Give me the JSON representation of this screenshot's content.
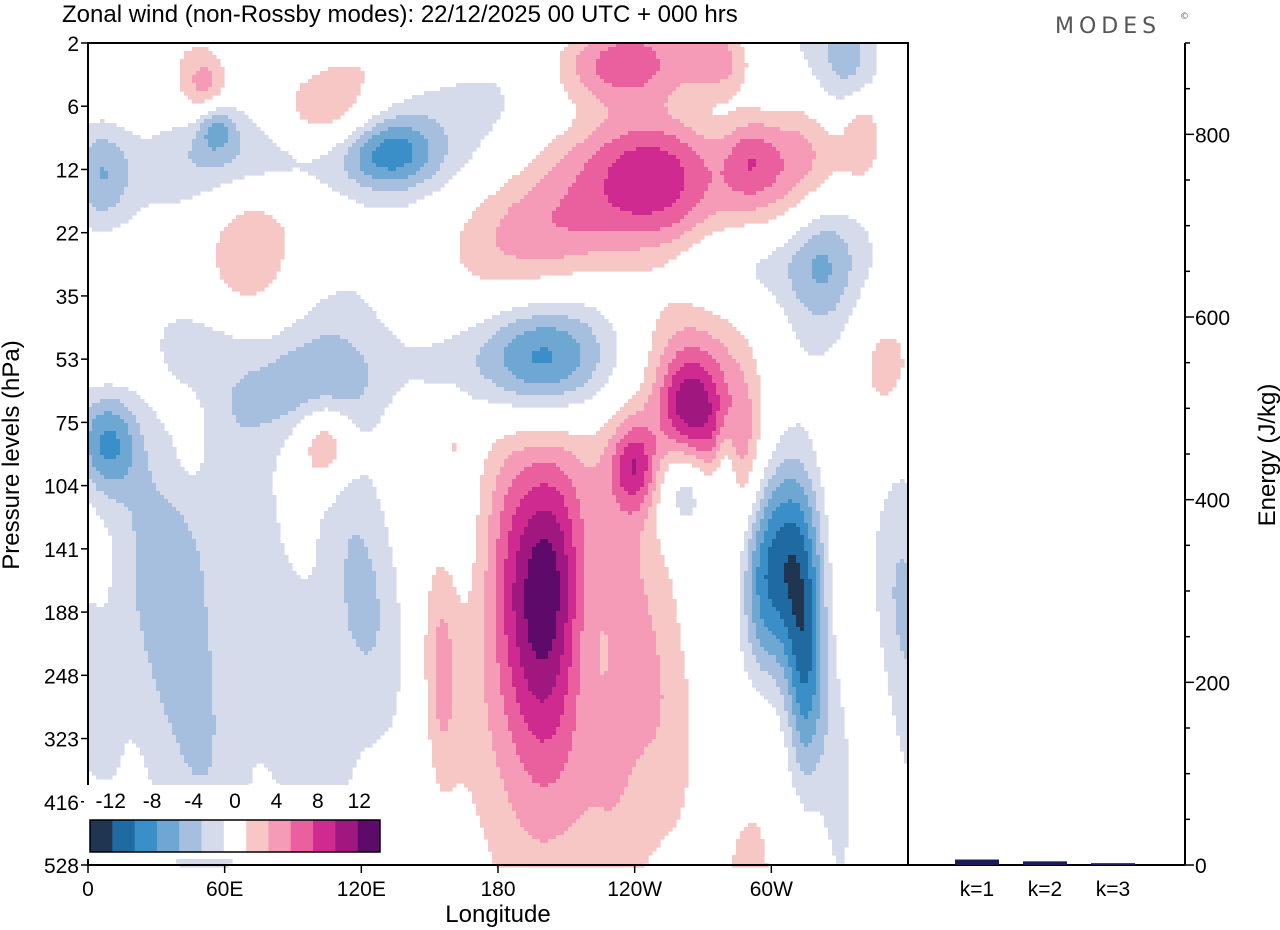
{
  "title": "Zonal wind (non-Rossby modes):  22/12/2025  00 UTC  + 000 hrs",
  "brand": "MODES",
  "brand_mark": "©",
  "colors": {
    "neg": [
      "#1f3550",
      "#1f6aa0",
      "#3a8fc8",
      "#6fa7d3",
      "#a7bfdf",
      "#d6dbec"
    ],
    "zero": "#ffffff",
    "pos": [
      "#f7c7c5",
      "#f59ab7",
      "#ea5f9e",
      "#cf2a8f",
      "#a0187f",
      "#5d0a6a"
    ],
    "axis": "#000000",
    "bar": "#1a1a5e"
  },
  "chart_data": [
    {
      "type": "heatmap",
      "title": "Zonal wind (non-Rossby modes)",
      "xlabel": "Longitude",
      "ylabel": "Pressure levels (hPa)",
      "x_ticks": [
        "0",
        "60E",
        "120E",
        "180",
        "120W",
        "60W"
      ],
      "x_tick_deg": [
        0,
        60,
        120,
        180,
        240,
        300
      ],
      "xlim": [
        0,
        360
      ],
      "y_ticks": [
        "2",
        "6",
        "12",
        "22",
        "35",
        "53",
        "75",
        "104",
        "141",
        "188",
        "248",
        "323",
        "416",
        "528"
      ],
      "colorbar": {
        "labels": [
          "-12",
          "-8",
          "-4",
          "0",
          "4",
          "8",
          "12"
        ],
        "levels": [
          -14,
          -12,
          -10,
          -8,
          -6,
          -4,
          -2,
          2,
          4,
          6,
          8,
          10,
          12,
          14
        ]
      },
      "features": [
        {
          "lon": 196,
          "lev": 9.3,
          "dlon": 18,
          "dlev": 2.5,
          "amp": 10
        },
        {
          "lon": 206,
          "lev": 8.2,
          "dlon": 9,
          "dlev": 1.2,
          "amp": 4
        },
        {
          "lon": 250,
          "lev": 2.0,
          "dlon": 25,
          "dlev": 0.9,
          "amp": 9
        },
        {
          "lon": 278,
          "lev": 6.3,
          "dlon": 15,
          "dlev": 1.0,
          "amp": 10
        },
        {
          "lon": 207,
          "lev": 3.0,
          "dlon": 35,
          "dlev": 0.7,
          "amp": 4
        },
        {
          "lon": 262,
          "lev": 5.7,
          "dlon": 8,
          "dlev": 0.6,
          "amp": 5
        },
        {
          "lon": 312,
          "lev": 1.9,
          "dlon": 16,
          "dlev": 0.7,
          "amp": 5
        },
        {
          "lon": 350,
          "lev": 5.0,
          "dlon": 12,
          "dlev": 0.8,
          "amp": 3
        },
        {
          "lon": 104,
          "lev": 6.3,
          "dlon": 9,
          "dlev": 0.5,
          "amp": 7
        },
        {
          "lon": 240,
          "lev": 6.7,
          "dlon": 7,
          "dlev": 0.5,
          "amp": 7
        },
        {
          "lon": 105,
          "lev": 1.0,
          "dlon": 20,
          "dlev": 0.5,
          "amp": 6
        },
        {
          "lon": 52,
          "lev": 0.7,
          "dlon": 8,
          "dlev": 0.4,
          "amp": 6
        },
        {
          "lon": 230,
          "lev": 0.3,
          "dlon": 20,
          "dlev": 0.5,
          "amp": 5
        },
        {
          "lon": 278,
          "lev": 0.3,
          "dlon": 10,
          "dlev": 0.4,
          "amp": 5
        },
        {
          "lon": 10,
          "lev": 4.3,
          "dlon": 12,
          "dlev": 1.0,
          "amp": 4
        },
        {
          "lon": 70,
          "lev": 3.3,
          "dlon": 14,
          "dlev": 0.8,
          "amp": 3
        },
        {
          "lon": 253,
          "lev": 8.0,
          "dlon": 15,
          "dlev": 4.0,
          "amp": 3
        },
        {
          "lon": 232,
          "lev": 11.0,
          "dlon": 10,
          "dlev": 2.2,
          "amp": 3
        },
        {
          "lon": 290,
          "lev": 13.0,
          "dlon": 9,
          "dlev": 1.0,
          "amp": 3
        },
        {
          "lon": 295,
          "lev": 10.5,
          "dlon": 8,
          "dlev": 1.0,
          "amp": 3
        },
        {
          "lon": 155,
          "lev": 10.0,
          "dlon": 5,
          "dlev": 1.5,
          "amp": 3
        },
        {
          "lon": 160,
          "lev": 6.3,
          "dlon": 5,
          "dlev": 0.5,
          "amp": 2.5
        },
        {
          "lon": 46,
          "lev": 6.3,
          "dlon": 4,
          "dlev": 0.4,
          "amp": 2.5
        },
        {
          "lon": 290,
          "lev": 1.8,
          "dlon": 8,
          "dlev": 0.5,
          "amp": 4
        },
        {
          "lon": 340,
          "lev": 1.4,
          "dlon": 6,
          "dlev": 0.5,
          "amp": 4
        },
        {
          "lon": 8,
          "lev": 6.3,
          "dlon": 10,
          "dlev": 0.6,
          "amp": -8
        },
        {
          "lon": 265,
          "lev": 7.0,
          "dlon": 10,
          "dlev": 0.6,
          "amp": -9
        },
        {
          "lon": 310,
          "lev": 8.0,
          "dlon": 10,
          "dlev": 1.2,
          "amp": -9
        },
        {
          "lon": 295,
          "lev": 9.0,
          "dlon": 8,
          "dlev": 1.5,
          "amp": -8
        },
        {
          "lon": 315,
          "lev": 10.0,
          "dlon": 6,
          "dlev": 1.3,
          "amp": -7
        },
        {
          "lon": 280,
          "lev": 6.7,
          "dlon": 4,
          "dlev": 0.7,
          "amp": -6
        },
        {
          "lon": 200,
          "lev": 5.0,
          "dlon": 20,
          "dlev": 0.7,
          "amp": -7
        },
        {
          "lon": 90,
          "lev": 1.8,
          "dlon": 50,
          "dlev": 0.5,
          "amp": -4
        },
        {
          "lon": 132,
          "lev": 1.7,
          "dlon": 14,
          "dlev": 0.4,
          "amp": -7
        },
        {
          "lon": 5,
          "lev": 2.1,
          "dlon": 10,
          "dlev": 0.7,
          "amp": -6
        },
        {
          "lon": 280,
          "lev": 3.5,
          "dlon": 30,
          "dlev": 0.5,
          "amp": -4
        },
        {
          "lon": 322,
          "lev": 3.3,
          "dlon": 12,
          "dlev": 1.0,
          "amp": -5
        },
        {
          "lon": 335,
          "lev": 0.4,
          "dlon": 12,
          "dlev": 0.7,
          "amp": -6
        },
        {
          "lon": 20,
          "lev": 9.0,
          "dlon": 22,
          "dlev": 3.0,
          "amp": -3
        },
        {
          "lon": 55,
          "lev": 9.5,
          "dlon": 18,
          "dlev": 2.5,
          "amp": -4
        },
        {
          "lon": 110,
          "lev": 9.0,
          "dlon": 18,
          "dlev": 3.0,
          "amp": -4
        },
        {
          "lon": 95,
          "lev": 5.5,
          "dlon": 25,
          "dlev": 0.6,
          "amp": -4
        },
        {
          "lon": 180,
          "lev": 5.0,
          "dlon": 40,
          "dlev": 0.6,
          "amp": -3
        },
        {
          "lon": 360,
          "lev": 9.0,
          "dlon": 10,
          "dlev": 3.0,
          "amp": -3
        },
        {
          "lon": 240,
          "lev": 1.1,
          "dlon": 30,
          "dlev": 0.4,
          "amp": -3
        },
        {
          "lon": 56,
          "lev": 1.3,
          "dlon": 6,
          "dlev": 0.3,
          "amp": -5
        },
        {
          "lon": 125,
          "lev": 0.9,
          "dlon": 30,
          "dlev": 0.4,
          "amp": -3
        },
        {
          "lon": 330,
          "lev": 12.0,
          "dlon": 6,
          "dlev": 1.5,
          "amp": -2.5
        },
        {
          "lon": 45,
          "lev": 4.7,
          "dlon": 20,
          "dlev": 0.5,
          "amp": -2.5
        }
      ]
    },
    {
      "type": "bar",
      "categories": [
        "k=1",
        "k=2",
        "k=3"
      ],
      "values": [
        6,
        4,
        2
      ],
      "ylabel": "Energy (J/kg)",
      "ylim": [
        0,
        900
      ],
      "y_ticks": [
        0,
        200,
        400,
        600,
        800
      ]
    }
  ]
}
